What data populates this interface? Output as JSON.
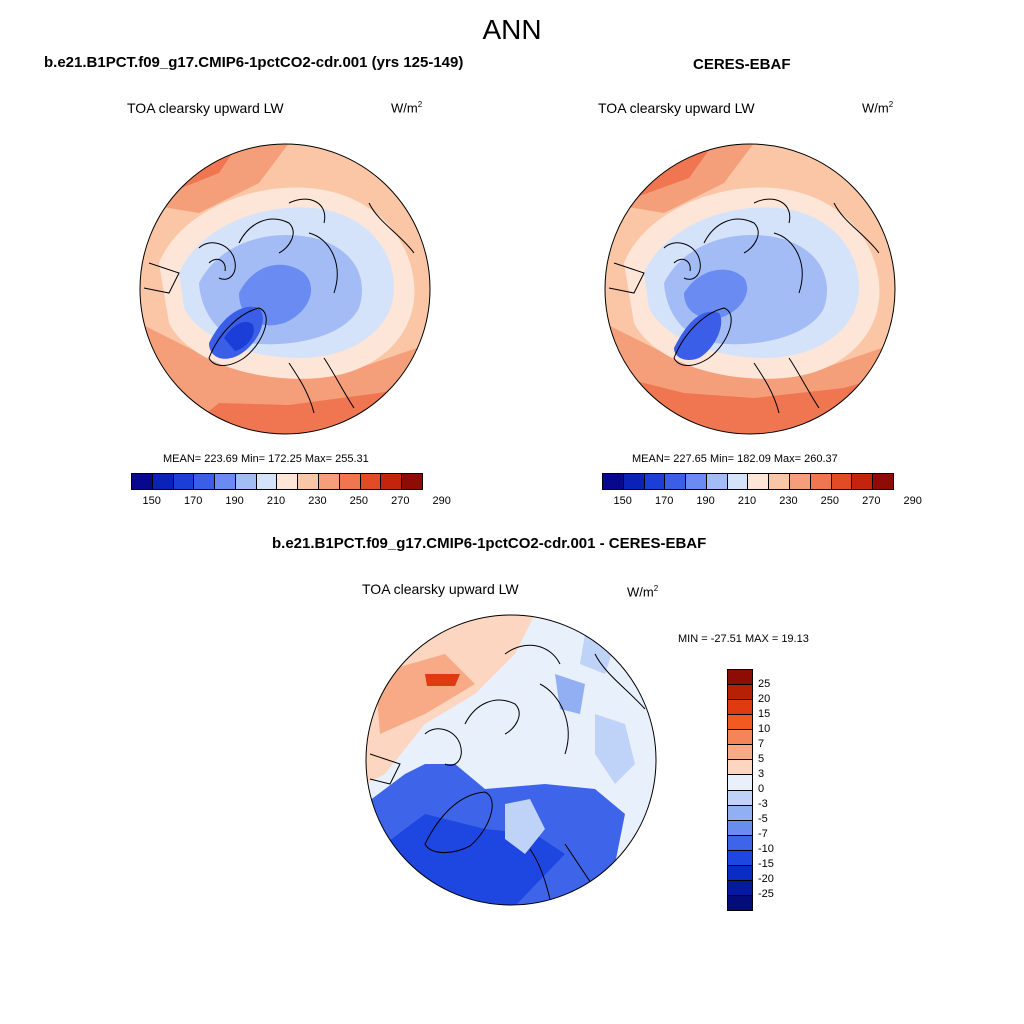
{
  "figure_title": "ANN",
  "panels": {
    "model": {
      "case_title": "b.e21.B1PCT.f09_g17.CMIP6-1pctCO2-cdr.001 (yrs 125-149)",
      "variable": "TOA clearsky upward LW",
      "units_base": "W/m",
      "units_exp": "2",
      "stats": "MEAN= 223.69  Min= 172.25  Max= 255.31"
    },
    "obs": {
      "case_title": "CERES-EBAF",
      "variable": "TOA clearsky upward LW",
      "units_base": "W/m",
      "units_exp": "2",
      "stats": "MEAN= 227.65  Min= 182.09  Max= 260.37"
    },
    "diff": {
      "case_title": "b.e21.B1PCT.f09_g17.CMIP6-1pctCO2-cdr.001 - CERES-EBAF",
      "variable": "TOA clearsky upward LW",
      "units_base": "W/m",
      "units_exp": "2",
      "stats": "MIN = -27.51 MAX =  19.13"
    }
  },
  "colorbar_abs": {
    "colors": [
      "#08088e",
      "#0a22b8",
      "#1c3ed8",
      "#3a5ee8",
      "#6a8cf2",
      "#a3bcf6",
      "#d4e2fa",
      "#fde6d8",
      "#fbc6a6",
      "#f59e7a",
      "#ef7650",
      "#e34a26",
      "#c4240e",
      "#8e0c06"
    ],
    "labels": [
      "150",
      "170",
      "190",
      "210",
      "230",
      "250",
      "270",
      "290"
    ]
  },
  "colorbar_diff": {
    "colors": [
      "#8e0c06",
      "#b82006",
      "#e03a10",
      "#f25a22",
      "#f58458",
      "#f8aa86",
      "#fcd6c0",
      "#e8f0fc",
      "#bfd2f8",
      "#93aff4",
      "#6a8cf0",
      "#3e64ea",
      "#1e46e0",
      "#0a2cc4",
      "#061a9e",
      "#040c7a"
    ],
    "labels": [
      "25",
      "20",
      "15",
      "10",
      "7",
      "5",
      "3",
      "0",
      "-3",
      "-5",
      "-7",
      "-10",
      "-15",
      "-20",
      "-25"
    ]
  }
}
